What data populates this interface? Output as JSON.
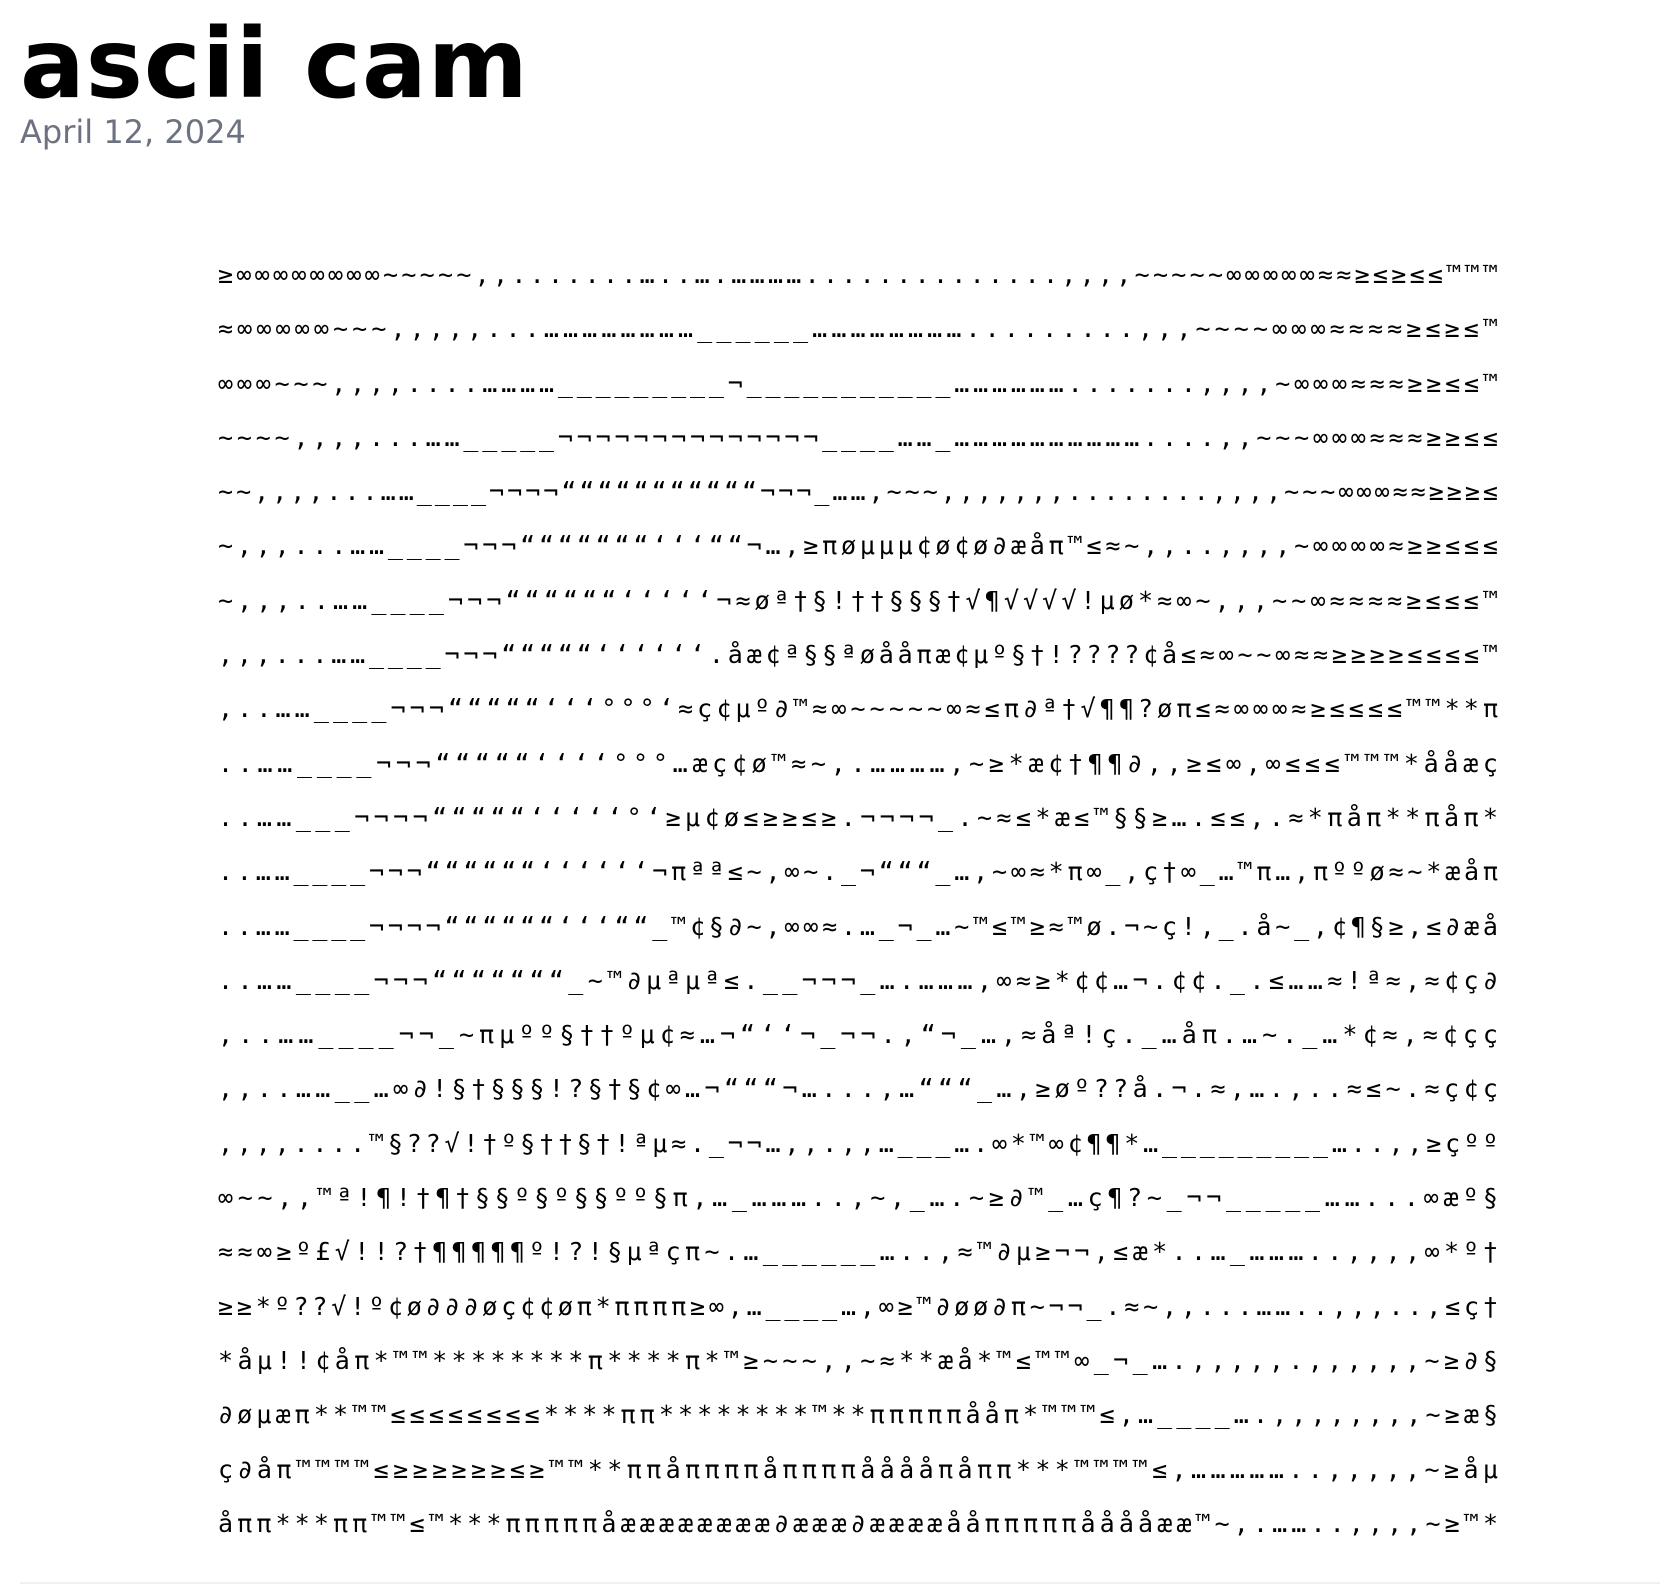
{
  "post": {
    "title": "ascii cam",
    "date": "April 12, 2024"
  },
  "ascii_art": {
    "lines": [
      "≥∞∞∞∞∞∞∞∞~~~~~,,.......…..….…………..............,,,,~~~~~∞∞∞∞∞≈≈≥≤≥≤≤™™™",
      "≈∞∞∞∞∞~~~,,,,,...……………………______…………………….........,,,~~~~∞∞∞≈≈≈≈≥≤≥≤™",
      "∞∞∞~~~,,,,....…………_________¬___________……………….......,,,,~∞∞∞≈≈≈≥≥≤≤™",
      "~~~~,,,,...……_____¬¬¬¬¬¬¬¬¬¬¬¬¬¬____……_…………………………....,,~~~∞∞∞≈≈≈≥≥≤≤",
      "~~,,,,...……____¬¬¬¬“““““““““““¬¬¬_……,~~~,,,,,,,........,,,,~~~∞∞∞≈≈≥≥≥≤",
      "~,,,...……____¬¬¬“““““““‘‘‘““¬…,≥πøμμμ¢ø¢ø∂æåπ™≤≈~,,..,,,,~∞∞∞∞≈≥≥≤≤≤",
      "~,,,..……____¬¬¬““““““‘‘‘‘‘¬≈øª†§!††§§§†√¶√√√√!μø*≈∞~,,,~~∞≈≈≈≈≥≤≤≤™",
      ",,,...……____¬¬¬“““““‘‘‘‘‘‘.åæ¢ª§§ªøååπæ¢μº§†!????¢å≤≈∞~~∞≈≈≥≥≥≥≤≤≤≤™",
      ",..……____¬¬¬“““““‘‘‘°°°‘≈ç¢μº∂™≈∞~~~~~∞≈≤π∂ª†√¶¶?øπ≤≈∞∞∞≈≥≤≤≤≤™™**π",
      "..……____¬¬¬“““““‘‘‘‘°°°…æç¢ø™≈~,.…………,~≥*æ¢†¶¶∂,,≥≤∞,∞≤≤≤™™™*ååæç",
      "..……___¬¬¬¬“““““‘‘‘‘‘°‘≥μ¢ø≤≥≥≤≥.¬¬¬¬_.~≈≤*æ≤™§§≥….≤≤,.≈*πåπ**πåπ*",
      "..……____¬¬¬““““““‘‘‘‘‘‘¬πªª≤~,∞~._¬“““_…,~∞≈*π∞_,ç†∞_…™π…,πººø≈~*æåπ",
      "..……____¬¬¬¬““““““‘‘‘““_™¢§∂~,∞∞≈.…_¬_…~™≤™≥≈™ø.¬~ç!,_.å~_,¢¶§≥,≤∂æå",
      "..……____¬¬¬“““““““_~™∂μªμª≤.__¬¬¬_….………,∞≈≥*¢¢…¬.¢¢._.≤……≈!ª≈,≈¢ç∂",
      ",..……____¬¬_~πμºº§††ºμ¢≈…¬“‘‘¬_¬¬.,“¬_…,≈åª!ç._…åπ.…~._…*¢≈,≈¢çç",
      ",,..……__…∞∂!§†§§§!?§†§¢∞…¬“““¬…...,…“““_…,≥øº??å.¬.≈,….,..≈≤~.≈ç¢ç",
      ",,,,....™§??√!†º§††§†!ªμ≈._¬¬…,,.,,…___….∞*™∞¢¶¶*…_________…..,,≥çºº",
      "∞~~,,™ª!¶!†¶†§§º§º§§ºº§π,…_………..,~,_….~≥∂™_…ç¶?~_¬¬_____……...∞æº§",
      "≈≈∞≥º£√!!?†¶¶¶¶¶º!?!§μªçπ~.…______…..,≈™∂μ≥¬¬,≤æ*..…_………..,,,,∞*º†",
      "≥≥*º??√!º¢ø∂∂∂øç¢¢øπ*ππππ≥∞,…____…,∞≥™∂øø∂π~¬¬_.≈~,,...……..,,,..,≤ç†",
      "*åμ!!¢åπ*™™********π****π*™≥~~~,,~≈**æå*™≤™™∞_¬_….,,,,,.,,,,,,~≥∂§",
      "∂øμæπ**™™≤≤≤≤≤≤≤≤****ππ********™**πππππååπ*™™™≤,…____….,,,,,,,,~≥æ§",
      "ç∂åπ™™™™≤≥≥≥≥≥≥≤≥™™**ππåππππåππππååååπåππ***™™™™≤,……………..,,,,,~≥åμ",
      "åππ***ππ™™≤™***πππππåææææææææ∂æææ∂ææææååπππππååååææ™~,.……..,,,,~≥™*"
    ]
  }
}
